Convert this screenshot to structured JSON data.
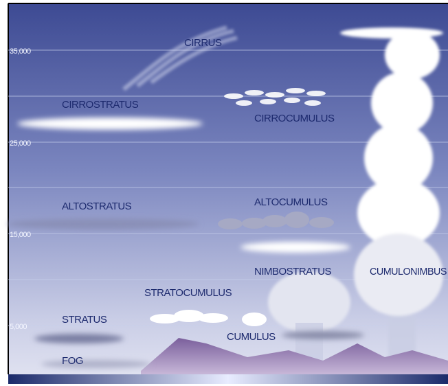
{
  "altitude_labels": [
    "35,000",
    "25,000",
    "15,000",
    "5,000"
  ],
  "clouds": [
    {
      "label": "CIRRUS"
    },
    {
      "label": "CIRROSTRATUS"
    },
    {
      "label": "CIRROCUMULUS"
    },
    {
      "label": "ALTOSTRATUS"
    },
    {
      "label": "ALTOCUMULUS"
    },
    {
      "label": "NIMBOSTRATUS"
    },
    {
      "label": "CUMULONIMBUS"
    },
    {
      "label": "STRATOCUMULUS"
    },
    {
      "label": "STRATUS"
    },
    {
      "label": "CUMULUS"
    },
    {
      "label": "FOG"
    }
  ]
}
